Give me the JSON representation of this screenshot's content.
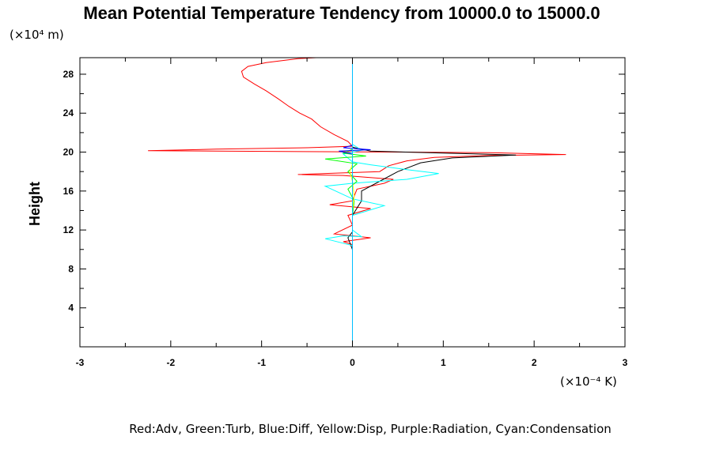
{
  "chart_data": {
    "type": "line",
    "title": "Mean Potential Temperature Tendency from 10000.0 to 15000.0",
    "ylabel": "Height",
    "y_unit": "(×10⁴ m)",
    "x_unit": "(×10⁻⁴ K)",
    "legend_text": "Red:Adv, Green:Turb, Blue:Diff, Yellow:Disp, Purple:Radiation, Cyan:Condensation",
    "xlim": [
      -3,
      3
    ],
    "ylim": [
      0,
      29.7
    ],
    "x_ticks": [
      -3,
      -2,
      -1,
      0,
      1,
      2,
      3
    ],
    "y_ticks": [
      4,
      8,
      12,
      16,
      20,
      24,
      28
    ],
    "grid": false,
    "series": [
      {
        "color": "#ff0000",
        "points": [
          [
            -0.2,
            29.8
          ],
          [
            -0.6,
            29.6
          ],
          [
            -0.95,
            29.2
          ],
          [
            -1.15,
            28.8
          ],
          [
            -1.22,
            28.3
          ],
          [
            -1.2,
            27.7
          ],
          [
            -1.08,
            27.0
          ],
          [
            -0.95,
            26.3
          ],
          [
            -0.82,
            25.5
          ],
          [
            -0.7,
            24.7
          ],
          [
            -0.58,
            24.0
          ],
          [
            -0.45,
            23.4
          ],
          [
            -0.35,
            22.6
          ],
          [
            -0.2,
            21.8
          ],
          [
            -0.05,
            21.1
          ],
          [
            0.0,
            20.6
          ],
          [
            -0.5,
            20.45
          ],
          [
            -1.5,
            20.3
          ],
          [
            -2.25,
            20.15
          ],
          [
            -1.5,
            20.1
          ],
          [
            0.5,
            20.0
          ],
          [
            1.5,
            19.95
          ],
          [
            2.35,
            19.75
          ],
          [
            1.5,
            19.65
          ],
          [
            0.9,
            19.45
          ],
          [
            0.6,
            19.1
          ],
          [
            0.4,
            18.6
          ],
          [
            0.3,
            18.0
          ],
          [
            -0.3,
            17.8
          ],
          [
            -0.6,
            17.7
          ],
          [
            -0.1,
            17.6
          ],
          [
            0.45,
            17.2
          ],
          [
            0.35,
            16.8
          ],
          [
            0.05,
            16.2
          ],
          [
            0.0,
            15.0
          ],
          [
            -0.25,
            14.6
          ],
          [
            0.2,
            14.2
          ],
          [
            -0.05,
            13.5
          ],
          [
            0.0,
            12.5
          ],
          [
            -0.2,
            11.6
          ],
          [
            0.2,
            11.2
          ],
          [
            -0.1,
            10.8
          ],
          [
            0.0,
            10.5
          ]
        ]
      },
      {
        "color": "#000000",
        "points": [
          [
            0.0,
            6.3
          ],
          [
            0.0,
            8.0
          ],
          [
            0.0,
            10.0
          ],
          [
            -0.05,
            11.2
          ],
          [
            0.0,
            11.8
          ],
          [
            0.0,
            13.5
          ],
          [
            0.1,
            15.0
          ],
          [
            0.1,
            16.0
          ],
          [
            0.3,
            17.0
          ],
          [
            0.5,
            18.0
          ],
          [
            0.75,
            18.9
          ],
          [
            1.1,
            19.4
          ],
          [
            1.8,
            19.7
          ],
          [
            1.0,
            19.9
          ],
          [
            0.2,
            20.1
          ],
          [
            0.0,
            20.5
          ]
        ]
      },
      {
        "color": "#00ffff",
        "points": [
          [
            0.0,
            10.4
          ],
          [
            -0.3,
            11.1
          ],
          [
            -0.1,
            11.4
          ],
          [
            0.1,
            11.3
          ],
          [
            0.0,
            12.0
          ],
          [
            0.0,
            13.5
          ],
          [
            0.35,
            14.5
          ],
          [
            0.0,
            15.2
          ],
          [
            -0.3,
            16.5
          ],
          [
            0.0,
            16.8
          ],
          [
            0.6,
            17.2
          ],
          [
            0.95,
            17.8
          ],
          [
            0.6,
            18.2
          ],
          [
            0.2,
            18.7
          ],
          [
            0.0,
            19.0
          ],
          [
            -0.1,
            19.8
          ],
          [
            0.1,
            20.2
          ],
          [
            0.0,
            20.8
          ]
        ]
      },
      {
        "color": "#00ff00",
        "points": [
          [
            0.0,
            13.5
          ],
          [
            0.02,
            15.0
          ],
          [
            -0.05,
            16.2
          ],
          [
            0.05,
            17.0
          ],
          [
            -0.05,
            18.0
          ],
          [
            0.05,
            18.8
          ],
          [
            -0.3,
            19.3
          ],
          [
            0.15,
            19.6
          ],
          [
            -0.1,
            19.9
          ],
          [
            0.0,
            20.3
          ]
        ]
      },
      {
        "color": "#0000ff",
        "points": [
          [
            0.0,
            19.8
          ],
          [
            -0.15,
            20.1
          ],
          [
            0.2,
            20.25
          ],
          [
            -0.1,
            20.45
          ],
          [
            0.0,
            20.7
          ]
        ]
      },
      {
        "color": "#ffff00",
        "points": [
          [
            0.0,
            14.0
          ],
          [
            0.02,
            15.5
          ],
          [
            0.0,
            17.0
          ],
          [
            -0.03,
            18.0
          ],
          [
            0.0,
            18.8
          ]
        ]
      },
      {
        "color": "#00bfff",
        "points": [
          [
            0.0,
            0.0
          ],
          [
            0.0,
            29.7
          ]
        ]
      }
    ]
  }
}
